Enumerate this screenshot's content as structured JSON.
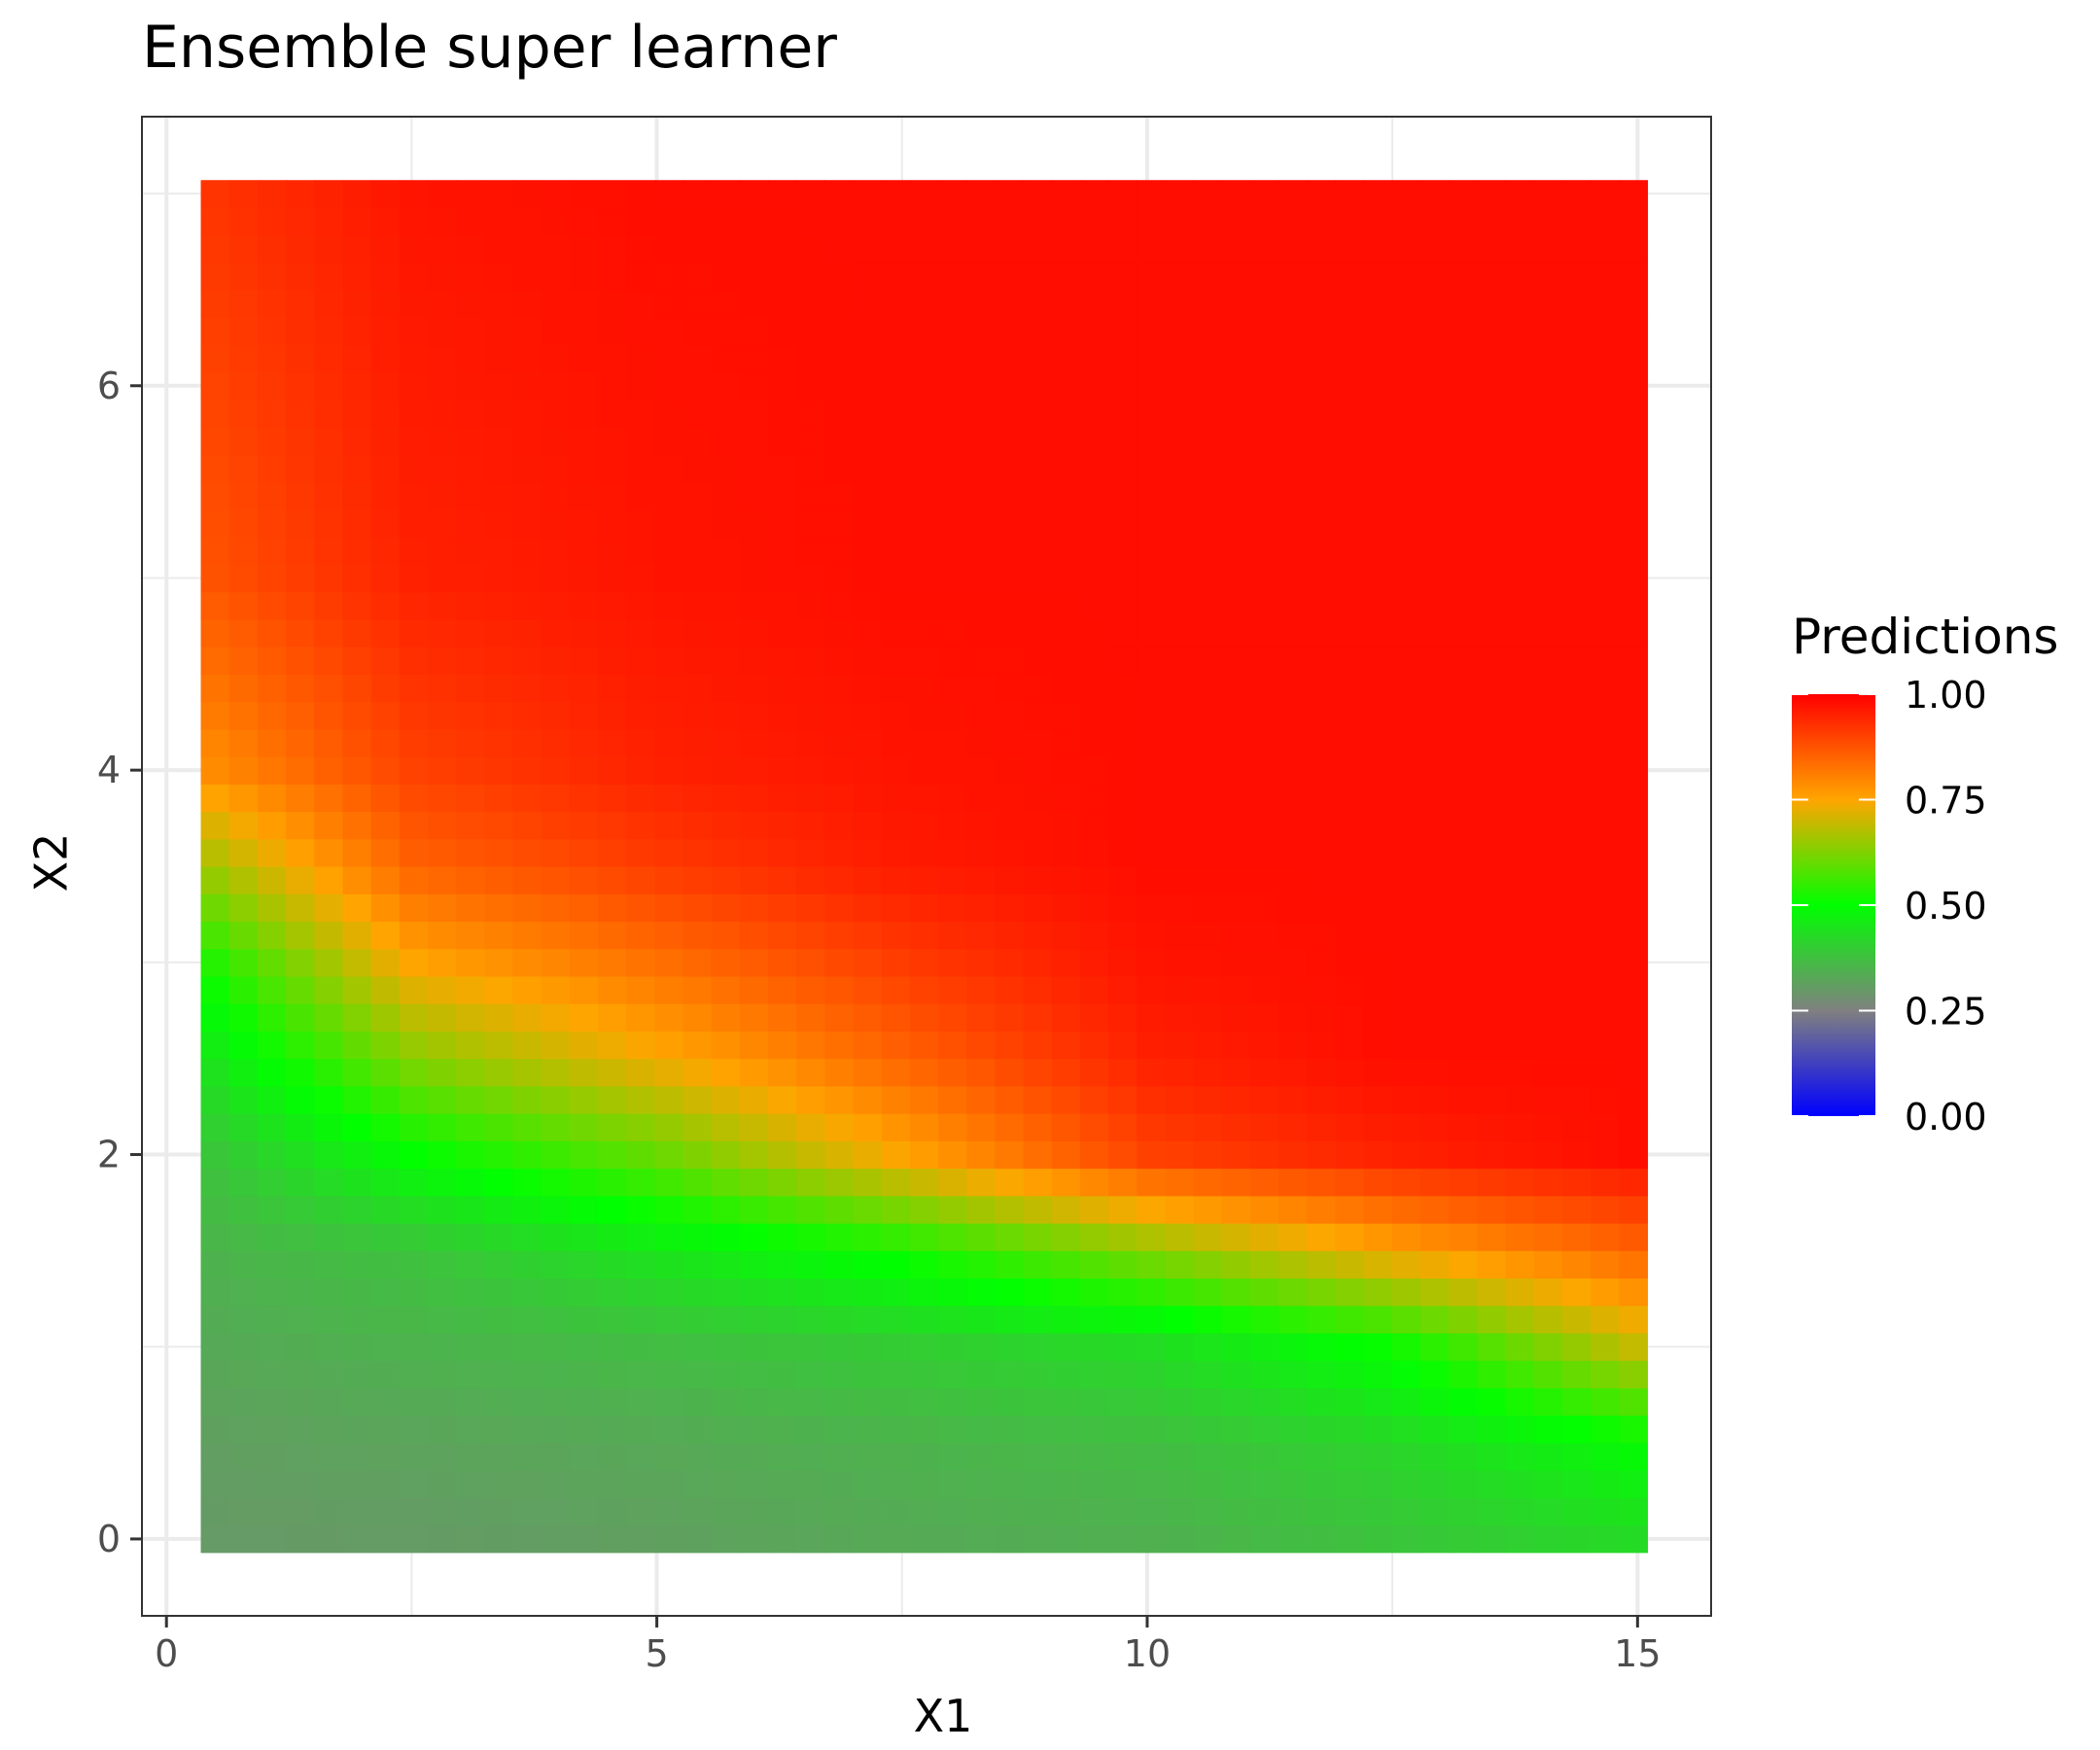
{
  "chart_data": {
    "type": "heatmap",
    "title": "Ensemble super learner",
    "xlabel": "X1",
    "ylabel": "X2",
    "xlim": [
      -0.25,
      15.75
    ],
    "ylim": [
      -0.4,
      7.4
    ],
    "x_ticks": [
      0,
      5,
      10,
      15
    ],
    "x_tick_labels": [
      "0",
      "5",
      "10",
      "15"
    ],
    "y_ticks": [
      0,
      2,
      4,
      6
    ],
    "y_tick_labels": [
      "0",
      "2",
      "4",
      "6"
    ],
    "grid": true,
    "grid_cells": {
      "x_range": [
        0.35,
        15.1
      ],
      "y_range": [
        -0.07,
        7.07
      ],
      "nx": 51,
      "ny": 50
    },
    "value_grid_x": [
      0.35,
      2.5,
      5,
      7.5,
      10,
      12.5,
      15.1
    ],
    "value_grid_y": [
      -0.07,
      0.5,
      1.0,
      1.5,
      2.0,
      2.5,
      3.0,
      3.5,
      4.0,
      5.0,
      7.07
    ],
    "value_grid": [
      [
        0.3,
        0.3,
        0.31,
        0.33,
        0.34,
        0.38,
        0.42
      ],
      [
        0.31,
        0.32,
        0.33,
        0.35,
        0.37,
        0.42,
        0.5
      ],
      [
        0.33,
        0.35,
        0.37,
        0.4,
        0.43,
        0.51,
        0.7
      ],
      [
        0.35,
        0.38,
        0.45,
        0.52,
        0.63,
        0.75,
        0.85
      ],
      [
        0.38,
        0.5,
        0.6,
        0.75,
        0.9,
        0.95,
        0.98
      ],
      [
        0.44,
        0.63,
        0.74,
        0.85,
        0.95,
        0.98,
        0.98
      ],
      [
        0.52,
        0.75,
        0.83,
        0.91,
        0.97,
        0.98,
        0.98
      ],
      [
        0.65,
        0.85,
        0.91,
        0.96,
        0.98,
        0.98,
        0.98
      ],
      [
        0.78,
        0.9,
        0.95,
        0.97,
        0.98,
        0.98,
        0.98
      ],
      [
        0.87,
        0.95,
        0.97,
        0.98,
        0.98,
        0.98,
        0.98
      ],
      [
        0.92,
        0.97,
        0.98,
        0.98,
        0.98,
        0.98,
        0.98
      ]
    ],
    "legend": {
      "title": "Predictions",
      "position": "right",
      "breaks": [
        0.0,
        0.25,
        0.5,
        0.75,
        1.0
      ],
      "labels": [
        "0.00",
        "0.25",
        "0.50",
        "0.75",
        "1.00"
      ],
      "colors": [
        "#0000ff",
        "#808080",
        "#00ff00",
        "#ffa500",
        "#ff0000"
      ],
      "limits": [
        0,
        1
      ]
    }
  }
}
